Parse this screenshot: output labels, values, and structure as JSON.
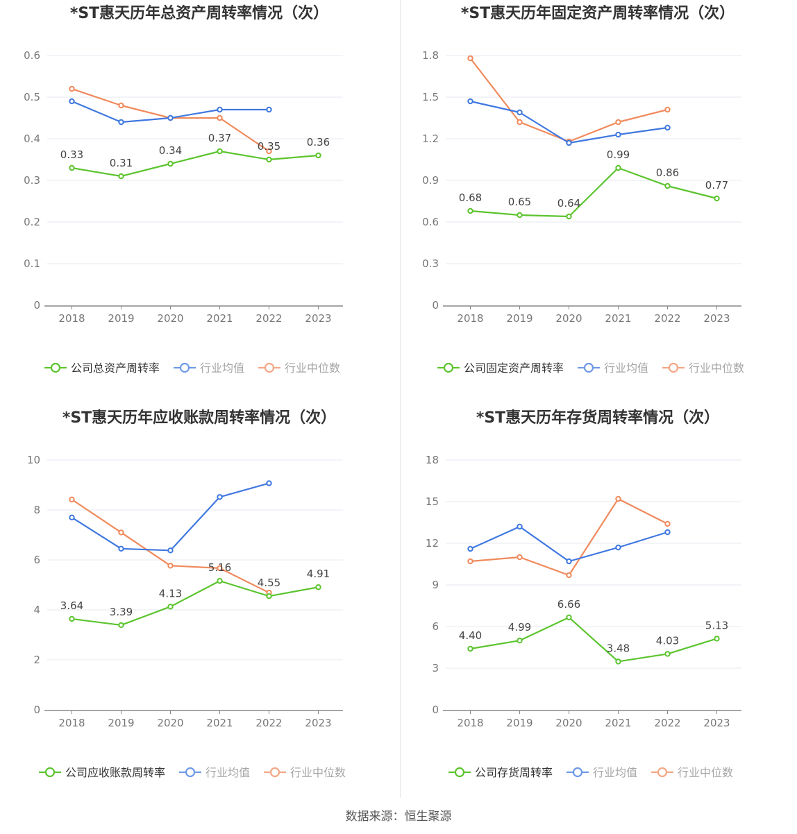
{
  "source": "数据来源：恒生聚源",
  "colors": {
    "company": "#5cc42e",
    "avg": "#3f78e0",
    "median": "#f08a5d",
    "grid": "#e6e9f2",
    "axis": "#888888",
    "text": "#555555"
  },
  "chart_data": [
    {
      "type": "line",
      "title": "*ST惠天历年总资产周转率情况（次）",
      "categories": [
        "2018",
        "2019",
        "2020",
        "2021",
        "2022",
        "2023"
      ],
      "ylim": [
        0,
        0.6
      ],
      "yticks": [
        "0",
        "0.1",
        "0.2",
        "0.3",
        "0.4",
        "0.5",
        "0.6"
      ],
      "legend_position": "bottom",
      "series": [
        {
          "name": "公司总资产周转率",
          "values": [
            0.33,
            0.31,
            0.34,
            0.37,
            0.35,
            0.36
          ],
          "labels": [
            "0.33",
            "0.31",
            "0.34",
            "0.37",
            "0.35",
            "0.36"
          ]
        },
        {
          "name": "行业均值",
          "values": [
            0.49,
            0.44,
            0.45,
            0.47,
            0.47,
            null
          ]
        },
        {
          "name": "行业中位数",
          "values": [
            0.52,
            0.48,
            0.45,
            0.45,
            0.37,
            null
          ]
        }
      ]
    },
    {
      "type": "line",
      "title": "*ST惠天历年固定资产周转率情况（次）",
      "categories": [
        "2018",
        "2019",
        "2020",
        "2021",
        "2022",
        "2023"
      ],
      "ylim": [
        0,
        1.8
      ],
      "yticks": [
        "0",
        "0.3",
        "0.6",
        "0.9",
        "1.2",
        "1.5",
        "1.8"
      ],
      "legend_position": "bottom",
      "series": [
        {
          "name": "公司固定资产周转率",
          "values": [
            0.68,
            0.65,
            0.64,
            0.99,
            0.86,
            0.77
          ],
          "labels": [
            "0.68",
            "0.65",
            "0.64",
            "0.99",
            "0.86",
            "0.77"
          ]
        },
        {
          "name": "行业均值",
          "values": [
            1.47,
            1.39,
            1.17,
            1.23,
            1.28,
            null
          ]
        },
        {
          "name": "行业中位数",
          "values": [
            1.78,
            1.32,
            1.18,
            1.32,
            1.41,
            null
          ]
        }
      ]
    },
    {
      "type": "line",
      "title": "*ST惠天历年应收账款周转率情况（次）",
      "categories": [
        "2018",
        "2019",
        "2020",
        "2021",
        "2022",
        "2023"
      ],
      "ylim": [
        0,
        10
      ],
      "yticks": [
        "0",
        "2",
        "4",
        "6",
        "8",
        "10"
      ],
      "legend_position": "bottom",
      "series": [
        {
          "name": "公司应收账款周转率",
          "values": [
            3.64,
            3.39,
            4.13,
            5.16,
            4.55,
            4.91
          ],
          "labels": [
            "3.64",
            "3.39",
            "4.13",
            "5.16",
            "4.55",
            "4.91"
          ]
        },
        {
          "name": "行业均值",
          "values": [
            7.7,
            6.45,
            6.38,
            8.52,
            9.07,
            null
          ]
        },
        {
          "name": "行业中位数",
          "values": [
            8.42,
            7.1,
            5.77,
            5.67,
            4.69,
            null
          ]
        }
      ]
    },
    {
      "type": "line",
      "title": "*ST惠天历年存货周转率情况（次）",
      "categories": [
        "2018",
        "2019",
        "2020",
        "2021",
        "2022",
        "2023"
      ],
      "ylim": [
        0,
        18
      ],
      "yticks": [
        "0",
        "3",
        "6",
        "9",
        "12",
        "15",
        "18"
      ],
      "legend_position": "bottom",
      "series": [
        {
          "name": "公司存货周转率",
          "values": [
            4.4,
            4.99,
            6.66,
            3.48,
            4.03,
            5.13
          ],
          "labels": [
            "4.40",
            "4.99",
            "6.66",
            "3.48",
            "4.03",
            "5.13"
          ]
        },
        {
          "name": "行业均值",
          "values": [
            11.6,
            13.2,
            10.7,
            11.7,
            12.8,
            null
          ]
        },
        {
          "name": "行业中位数",
          "values": [
            10.7,
            11.0,
            9.7,
            15.2,
            13.4,
            null
          ]
        }
      ]
    }
  ]
}
